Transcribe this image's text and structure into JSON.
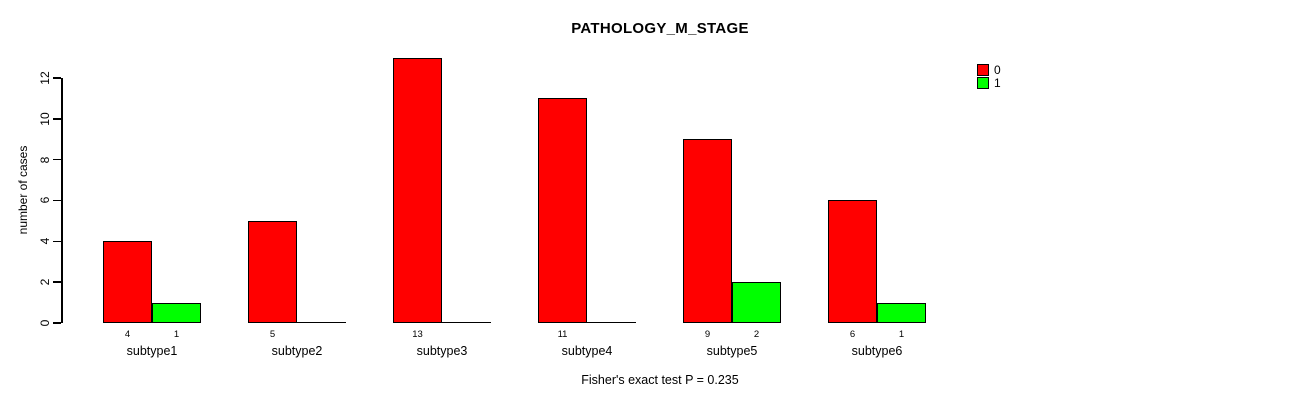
{
  "chart_data": {
    "type": "bar",
    "title": "PATHOLOGY_M_STAGE",
    "ylabel": "number of cases",
    "xlabel": "",
    "caption": "Fisher's exact test P = 0.235",
    "categories": [
      "subtype1",
      "subtype2",
      "subtype3",
      "subtype4",
      "subtype5",
      "subtype6"
    ],
    "series": [
      {
        "name": "0",
        "color": "#FF0000",
        "values": [
          4,
          5,
          13,
          11,
          9,
          6
        ]
      },
      {
        "name": "1",
        "color": "#00FF00",
        "values": [
          1,
          0,
          0,
          0,
          2,
          1
        ]
      }
    ],
    "bar_value_labels": [
      [
        "4",
        "1"
      ],
      [
        "5",
        ""
      ],
      [
        "13",
        ""
      ],
      [
        "11",
        ""
      ],
      [
        "9",
        "2"
      ],
      [
        "6",
        "1"
      ]
    ],
    "yticks": [
      0,
      2,
      4,
      6,
      8,
      10,
      12
    ],
    "ylim": [
      0,
      12
    ],
    "grid": false,
    "legend_position": "top-right",
    "background_color": "#FFFFFF",
    "axis_color": "#000000",
    "bar_border_color": "#000000"
  }
}
